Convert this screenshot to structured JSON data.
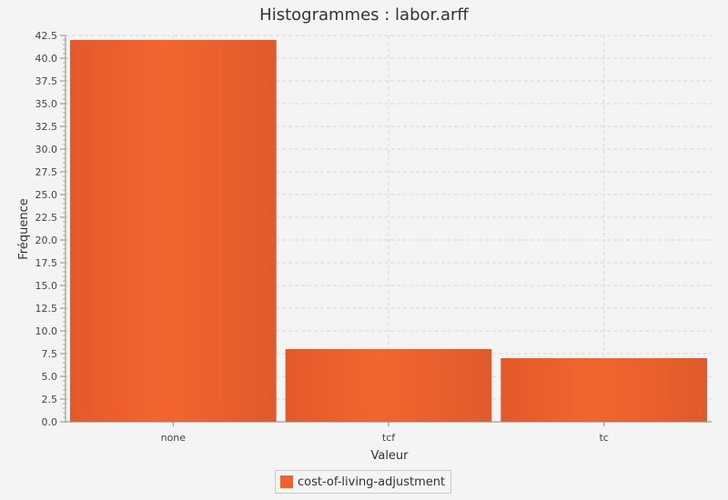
{
  "chart_data": {
    "type": "bar",
    "title": "Histogrammes : labor.arff",
    "xlabel": "Valeur",
    "ylabel": "Fréquence",
    "categories": [
      "none",
      "tcf",
      "tc"
    ],
    "series": [
      {
        "name": "cost-of-living-adjustment",
        "values": [
          42,
          8,
          7
        ]
      }
    ],
    "ylim": [
      0,
      42.5
    ],
    "ytick_step": 2.5,
    "grid": true,
    "legend_position": "bottom",
    "bar_color": "#f0612f"
  }
}
